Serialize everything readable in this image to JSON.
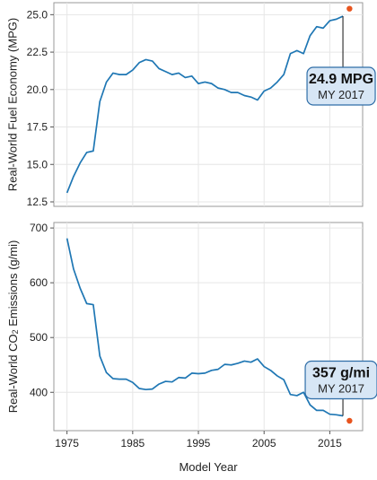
{
  "chart_data": [
    {
      "type": "line",
      "ylabel": "Real-World Fuel Economy (MPG)",
      "xlim": [
        1973,
        2020
      ],
      "ylim": [
        12.2,
        25.8
      ],
      "yticks": [
        12.5,
        15.0,
        17.5,
        20.0,
        22.5,
        25.0
      ],
      "ytick_labels": [
        "12.5",
        "15.0",
        "17.5",
        "20.0",
        "22.5",
        "25.0"
      ],
      "grid": true,
      "line_color": "#1f77b4",
      "series": [
        {
          "x": [
            1975,
            1976,
            1977,
            1978,
            1979,
            1980,
            1981,
            1982,
            1983,
            1984,
            1985,
            1986,
            1987,
            1988,
            1989,
            1990,
            1991,
            1992,
            1993,
            1994,
            1995,
            1996,
            1997,
            1998,
            1999,
            2000,
            2001,
            2002,
            2003,
            2004,
            2005,
            2006,
            2007,
            2008,
            2009,
            2010,
            2011,
            2012,
            2013,
            2014,
            2015,
            2016,
            2017
          ],
          "y": [
            13.1,
            14.2,
            15.1,
            15.8,
            15.9,
            19.2,
            20.5,
            21.1,
            21.0,
            21.0,
            21.3,
            21.8,
            22.0,
            21.9,
            21.4,
            21.2,
            21.0,
            21.1,
            20.8,
            20.9,
            20.4,
            20.5,
            20.4,
            20.1,
            20.0,
            19.8,
            19.8,
            19.6,
            19.5,
            19.3,
            19.9,
            20.1,
            20.5,
            21.0,
            22.4,
            22.6,
            22.4,
            23.6,
            24.2,
            24.1,
            24.6,
            24.7,
            24.9
          ]
        }
      ],
      "projection_point": {
        "x": 2018,
        "y": 25.4,
        "color": "#e8541e"
      },
      "callout": {
        "value": "24.9 MPG",
        "label": "MY 2017",
        "anchor_x": 2017,
        "anchor_y": 24.9
      }
    },
    {
      "type": "line",
      "ylabel_main": "Real-World CO",
      "ylabel_sub": "2",
      "ylabel_tail": " Emissions (g/mi)",
      "xlabel": "Model Year",
      "xlim": [
        1973,
        2020
      ],
      "ylim": [
        330,
        710
      ],
      "yticks": [
        400,
        500,
        600,
        700
      ],
      "ytick_labels": [
        "400",
        "500",
        "600",
        "700"
      ],
      "xticks": [
        1975,
        1985,
        1995,
        2005,
        2015
      ],
      "xtick_labels": [
        "1975",
        "1985",
        "1995",
        "2005",
        "2015"
      ],
      "grid": true,
      "line_color": "#1f77b4",
      "series": [
        {
          "x": [
            1975,
            1976,
            1977,
            1978,
            1979,
            1980,
            1981,
            1982,
            1983,
            1984,
            1985,
            1986,
            1987,
            1988,
            1989,
            1990,
            1991,
            1992,
            1993,
            1994,
            1995,
            1996,
            1997,
            1998,
            1999,
            2000,
            2001,
            2002,
            2003,
            2004,
            2005,
            2006,
            2007,
            2008,
            2009,
            2010,
            2011,
            2012,
            2013,
            2014,
            2015,
            2016,
            2017
          ],
          "y": [
            681,
            625,
            590,
            562,
            560,
            466,
            436,
            425,
            424,
            424,
            418,
            407,
            405,
            406,
            415,
            420,
            419,
            427,
            426,
            435,
            434,
            435,
            440,
            442,
            451,
            450,
            453,
            457,
            455,
            461,
            447,
            440,
            430,
            423,
            396,
            394,
            400,
            377,
            367,
            367,
            360,
            359,
            357
          ]
        }
      ],
      "projection_point": {
        "x": 2018,
        "y": 348,
        "color": "#e8541e"
      },
      "callout": {
        "value": "357 g/mi",
        "label": "MY 2017",
        "anchor_x": 2017,
        "anchor_y": 357
      }
    }
  ]
}
